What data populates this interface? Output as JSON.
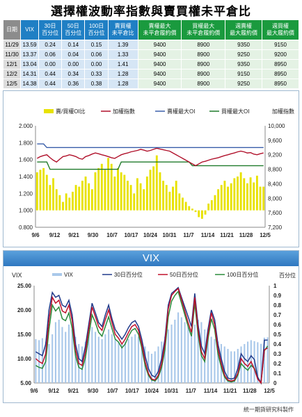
{
  "title": "選擇權波動率指數與賣買權未平倉比",
  "table": {
    "headers": [
      "日期",
      "VIX",
      "30日\n百分位",
      "50日\n百分位",
      "100日\n百分位",
      "賣買權\n未平倉比",
      "賣權最大\n未平倉履約價",
      "買權最大\n未平倉履約價",
      "週賣權\n最大履約價",
      "週買權\n最大履約價"
    ],
    "rows": [
      [
        "11/29",
        "13.59",
        "0.24",
        "0.14",
        "0.15",
        "1.39",
        "9400",
        "8900",
        "9350",
        "9150"
      ],
      [
        "11/30",
        "13.37",
        "0.06",
        "0.04",
        "0.06",
        "1.33",
        "9400",
        "8900",
        "9250",
        "9200"
      ],
      [
        "12/1",
        "13.04",
        "0.00",
        "0.00",
        "0.00",
        "1.41",
        "9400",
        "8900",
        "9350",
        "8950"
      ],
      [
        "12/2",
        "14.31",
        "0.44",
        "0.34",
        "0.33",
        "1.28",
        "9400",
        "8900",
        "9150",
        "8950"
      ],
      [
        "12/5",
        "14.38",
        "0.44",
        "0.36",
        "0.38",
        "1.28",
        "9400",
        "8900",
        "9250",
        "8950"
      ]
    ]
  },
  "chart_data": [
    {
      "type": "bar",
      "legend": [
        "賣/買權OI比",
        "加權指數",
        "賣權最大OI",
        "買權最大OI"
      ],
      "y_left": {
        "ticks": [
          "2.000",
          "1.800",
          "1.600",
          "1.400",
          "1.200",
          "1.000",
          "0.800"
        ],
        "range": [
          0.8,
          2.0
        ]
      },
      "y_right": {
        "label": "加權指數",
        "ticks": [
          "10,000",
          "9,600",
          "9,200",
          "8,800",
          "8,400",
          "8,000",
          "7,600",
          "7,200"
        ],
        "range": [
          7200,
          10000
        ]
      },
      "x_ticks": [
        "9/6",
        "9/12",
        "9/21",
        "9/30",
        "10/7",
        "10/17",
        "10/24",
        "10/31",
        "11/7",
        "11/14",
        "11/21",
        "11/28",
        "12/5"
      ],
      "colors": {
        "ratio": "#e8e200",
        "index": "#b0102a",
        "put_oi": "#3a5faa",
        "call_oi": "#1e7a2a"
      },
      "ratio": [
        1.45,
        1.48,
        1.5,
        1.42,
        1.3,
        1.38,
        1.25,
        1.18,
        1.1,
        1.2,
        1.15,
        1.22,
        1.3,
        1.28,
        1.35,
        1.4,
        1.32,
        1.25,
        1.45,
        1.5,
        1.55,
        1.48,
        1.62,
        1.55,
        1.4,
        1.5,
        1.45,
        1.42,
        1.35,
        1.3,
        1.2,
        1.38,
        1.32,
        1.25,
        1.4,
        1.48,
        1.52,
        1.65,
        1.45,
        1.35,
        1.3,
        1.22,
        1.28,
        1.35,
        1.2,
        1.15,
        1.1,
        1.05,
        1.02,
        0.98,
        0.92,
        0.9,
        0.95,
        1.08,
        1.12,
        1.18,
        1.25,
        1.3,
        1.35,
        1.28,
        1.32,
        1.38,
        1.4,
        1.45,
        1.38,
        1.32,
        1.39,
        1.33,
        1.41,
        1.28,
        1.28
      ],
      "index": [
        9100,
        9150,
        9180,
        9200,
        9120,
        9050,
        9000,
        9080,
        9150,
        9170,
        9200,
        9180,
        9150,
        9100,
        9080,
        9150,
        9180,
        9220,
        9250,
        9230,
        9200,
        9180,
        9150,
        9120,
        9100,
        9150,
        9200,
        9230,
        9250,
        9280,
        9300,
        9320,
        9350,
        9330,
        9300,
        9320,
        9350,
        9380,
        9360,
        9340,
        9320,
        9300,
        9250,
        9200,
        9150,
        9100,
        9050,
        9000,
        8950,
        8900,
        8950,
        9000,
        9020,
        9050,
        9080,
        9100,
        9120,
        9150,
        9180,
        9200,
        9230,
        9250,
        9280,
        9300,
        9280,
        9250,
        9260,
        9220,
        9200,
        9230,
        9250
      ],
      "put_oi": [
        9500,
        9500,
        9500,
        9400,
        9400,
        9400,
        9400,
        9400,
        9400,
        9400,
        9400,
        9400,
        9400,
        9400,
        9400,
        9400,
        9400,
        9400,
        9400,
        9400,
        9400,
        9400,
        9400,
        9400,
        9400,
        9400,
        9400,
        9400,
        9400,
        9400,
        9400,
        9400,
        9400,
        9400,
        9400,
        9400,
        9400,
        9400,
        9400,
        9400,
        9400,
        9400,
        9400,
        9400,
        9400,
        9400,
        9400,
        9400,
        9400,
        9400,
        9400,
        9400,
        9400,
        9400,
        9400,
        9400,
        9400,
        9400,
        9400,
        9400,
        9400,
        9400,
        9400,
        9400,
        9400,
        9400,
        9400,
        9400,
        9400,
        9400,
        9400
      ],
      "call_oi": [
        9000,
        9000,
        9000,
        9000,
        8800,
        8800,
        8800,
        8800,
        8800,
        8800,
        8800,
        8800,
        8800,
        8800,
        8800,
        8800,
        8800,
        8800,
        8800,
        8800,
        8800,
        8800,
        8800,
        8800,
        8800,
        8800,
        9000,
        9000,
        9000,
        9000,
        9000,
        9000,
        9000,
        9000,
        9000,
        9000,
        9000,
        9000,
        9000,
        9000,
        9000,
        9000,
        9000,
        9000,
        9000,
        9000,
        9000,
        9000,
        8900,
        8900,
        8900,
        8900,
        8900,
        8900,
        8900,
        8900,
        8900,
        8900,
        8900,
        8900,
        8900,
        8900,
        8900,
        8900,
        8900,
        8900,
        8900,
        8900,
        8900,
        8900,
        8900
      ]
    },
    {
      "type": "line",
      "title": "VIX",
      "legend": [
        "VIX",
        "30日百分位",
        "50日百分位",
        "100日百分位"
      ],
      "y_left": {
        "label": "VIX",
        "ticks": [
          "25.00",
          "20.00",
          "15.00",
          "10.00",
          "5.00"
        ],
        "range": [
          5,
          25
        ]
      },
      "y_right": {
        "label": "百分位",
        "ticks": [
          "1",
          "0.9",
          "0.8",
          "0.7",
          "0.6",
          "0.5",
          "0.4",
          "0.3",
          "0.2",
          "0.1",
          "0"
        ],
        "range": [
          0,
          1
        ]
      },
      "x_ticks": [
        "9/6",
        "9/12",
        "9/21",
        "9/30",
        "10/7",
        "10/17",
        "10/24",
        "10/31",
        "11/7",
        "11/14",
        "11/21",
        "11/28",
        "12/5"
      ],
      "colors": {
        "vix": "#a9c8ea",
        "p30": "#203a8a",
        "p50": "#c0102a",
        "p100": "#2a8a3a"
      },
      "vix": [
        14,
        13.8,
        14.2,
        13.5,
        13.0,
        15,
        17.5,
        18,
        16.5,
        15.5,
        17,
        16,
        14.5,
        13,
        12.5,
        13.5,
        15,
        16.5,
        15.5,
        14.5,
        14,
        15,
        16,
        15,
        14,
        13.5,
        13,
        13.5,
        14,
        14.5,
        15,
        14.5,
        13.5,
        12.5,
        11.5,
        11,
        11.5,
        12.5,
        13.5,
        14.5,
        16,
        17,
        18,
        19.5,
        18.5,
        17.5,
        16.5,
        16,
        17,
        18,
        17.5,
        16,
        15,
        14.5,
        14,
        13.5,
        13,
        12.5,
        12,
        11.5,
        11.5,
        12,
        12.5,
        13,
        13.5,
        13.8,
        13.59,
        13.37,
        13.04,
        14.31,
        14.38
      ],
      "p30": [
        0.32,
        0.3,
        0.28,
        0.4,
        0.75,
        0.93,
        0.88,
        0.9,
        0.8,
        0.78,
        0.85,
        0.7,
        0.4,
        0.25,
        0.22,
        0.38,
        0.6,
        0.82,
        0.72,
        0.62,
        0.58,
        0.7,
        0.8,
        0.66,
        0.55,
        0.5,
        0.45,
        0.5,
        0.57,
        0.62,
        0.64,
        0.58,
        0.45,
        0.28,
        0.15,
        0.08,
        0.06,
        0.12,
        0.25,
        0.45,
        0.8,
        0.92,
        0.95,
        0.98,
        0.88,
        0.78,
        0.68,
        0.58,
        0.92,
        0.6,
        0.38,
        0.3,
        0.55,
        0.75,
        0.65,
        0.4,
        0.25,
        0.12,
        0.05,
        0.04,
        0.05,
        0.15,
        0.3,
        0.25,
        0.22,
        0.28,
        0.24,
        0.06,
        0.0,
        0.44,
        0.44
      ],
      "p50": [
        0.25,
        0.22,
        0.2,
        0.3,
        0.65,
        0.88,
        0.82,
        0.85,
        0.74,
        0.72,
        0.8,
        0.64,
        0.34,
        0.2,
        0.18,
        0.32,
        0.55,
        0.78,
        0.68,
        0.58,
        0.54,
        0.65,
        0.75,
        0.62,
        0.5,
        0.46,
        0.4,
        0.45,
        0.52,
        0.58,
        0.6,
        0.54,
        0.4,
        0.22,
        0.1,
        0.04,
        0.03,
        0.08,
        0.2,
        0.4,
        0.76,
        0.9,
        0.94,
        0.97,
        0.86,
        0.74,
        0.62,
        0.52,
        0.88,
        0.55,
        0.32,
        0.25,
        0.5,
        0.72,
        0.6,
        0.35,
        0.2,
        0.08,
        0.03,
        0.02,
        0.03,
        0.1,
        0.25,
        0.2,
        0.17,
        0.22,
        0.14,
        0.04,
        0.0,
        0.34,
        0.36
      ],
      "p100": [
        0.18,
        0.16,
        0.15,
        0.22,
        0.55,
        0.8,
        0.74,
        0.78,
        0.66,
        0.64,
        0.72,
        0.56,
        0.28,
        0.16,
        0.14,
        0.26,
        0.48,
        0.7,
        0.62,
        0.52,
        0.48,
        0.58,
        0.68,
        0.56,
        0.45,
        0.42,
        0.36,
        0.4,
        0.48,
        0.54,
        0.56,
        0.5,
        0.36,
        0.18,
        0.08,
        0.03,
        0.02,
        0.06,
        0.16,
        0.34,
        0.68,
        0.84,
        0.9,
        0.94,
        0.82,
        0.7,
        0.58,
        0.48,
        0.82,
        0.5,
        0.28,
        0.22,
        0.45,
        0.66,
        0.55,
        0.3,
        0.16,
        0.06,
        0.02,
        0.01,
        0.02,
        0.08,
        0.2,
        0.16,
        0.13,
        0.18,
        0.15,
        0.06,
        0.0,
        0.33,
        0.38
      ]
    }
  ],
  "footer": "統一期貨研究科製作"
}
